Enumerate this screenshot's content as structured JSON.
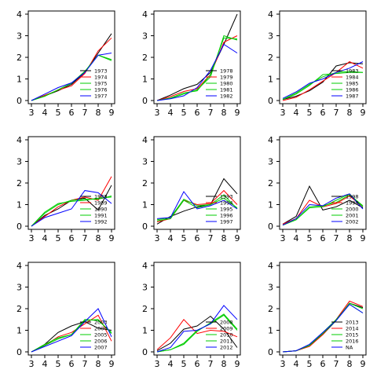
{
  "chart_data": {
    "type": "line",
    "layout": "3x3 small multiples",
    "x": [
      3,
      4,
      5,
      6,
      7,
      8,
      9
    ],
    "xlim": [
      3,
      9
    ],
    "ylim": [
      0,
      4
    ],
    "x_ticks": [
      3,
      4,
      5,
      6,
      7,
      8,
      9
    ],
    "y_ticks": [
      0,
      1,
      2,
      3,
      4
    ],
    "legend_placement": "right",
    "series_colors": [
      "#000000",
      "#ff0000",
      "#00cc00",
      "#00cc00",
      "#0000ff"
    ],
    "panels": [
      {
        "legend": [
          "1973",
          "1974",
          "1975",
          "1976",
          "1977"
        ],
        "series": [
          {
            "name": "1973",
            "color": "#000000",
            "values": [
              0.0,
              0.22,
              0.45,
              0.75,
              1.3,
              2.2,
              3.1
            ]
          },
          {
            "name": "1974",
            "color": "#ff0000",
            "values": [
              0.0,
              0.24,
              0.48,
              0.68,
              1.25,
              2.3,
              2.9
            ]
          },
          {
            "name": "1975",
            "color": "#00cc00",
            "values": [
              0.0,
              0.2,
              0.5,
              0.8,
              1.35,
              2.1,
              1.9
            ]
          },
          {
            "name": "1976",
            "color": "#00cc00",
            "values": [
              0.0,
              0.2,
              0.5,
              0.8,
              1.35,
              2.1,
              1.85
            ]
          },
          {
            "name": "1977",
            "color": "#0000ff",
            "values": [
              0.0,
              0.3,
              0.6,
              0.82,
              1.3,
              2.1,
              2.2
            ]
          }
        ]
      },
      {
        "legend": [
          "1978",
          "1979",
          "1980",
          "1981",
          "1982"
        ],
        "series": [
          {
            "name": "1978",
            "color": "#000000",
            "values": [
              0.0,
              0.25,
              0.55,
              0.75,
              1.3,
              2.6,
              4.0
            ]
          },
          {
            "name": "1979",
            "color": "#ff0000",
            "values": [
              0.0,
              0.18,
              0.42,
              0.55,
              1.2,
              2.7,
              3.0
            ]
          },
          {
            "name": "1980",
            "color": "#00cc00",
            "values": [
              0.0,
              0.1,
              0.3,
              0.5,
              1.1,
              3.0,
              2.8
            ]
          },
          {
            "name": "1981",
            "color": "#00cc00",
            "values": [
              0.0,
              0.12,
              0.35,
              0.45,
              1.2,
              2.9,
              2.85
            ]
          },
          {
            "name": "1982",
            "color": "#0000ff",
            "values": [
              0.0,
              0.08,
              0.22,
              0.6,
              1.4,
              2.6,
              2.2
            ]
          }
        ]
      },
      {
        "legend": [
          "1983",
          "1984",
          "1985",
          "1986",
          "1987"
        ],
        "series": [
          {
            "name": "1983",
            "color": "#000000",
            "values": [
              0.05,
              0.2,
              0.45,
              0.85,
              1.6,
              1.75,
              1.7
            ]
          },
          {
            "name": "1984",
            "color": "#ff0000",
            "values": [
              0.0,
              0.15,
              0.5,
              0.9,
              1.3,
              1.8,
              1.5
            ]
          },
          {
            "name": "1985",
            "color": "#00cc00",
            "values": [
              0.05,
              0.3,
              0.7,
              1.2,
              1.25,
              1.3,
              1.3
            ]
          },
          {
            "name": "1986",
            "color": "#00cc00",
            "values": [
              0.05,
              0.35,
              0.75,
              1.1,
              1.3,
              1.35,
              1.3
            ]
          },
          {
            "name": "1987",
            "color": "#0000ff",
            "values": [
              0.1,
              0.4,
              0.8,
              1.0,
              1.3,
              1.5,
              1.8
            ]
          }
        ]
      },
      {
        "legend": [
          "1988",
          "1989",
          "1990",
          "1991",
          "1992"
        ],
        "series": [
          {
            "name": "1988",
            "color": "#000000",
            "values": [
              0.0,
              0.5,
              0.8,
              1.2,
              1.3,
              0.75,
              1.9
            ]
          },
          {
            "name": "1989",
            "color": "#ff0000",
            "values": [
              0.0,
              0.45,
              0.9,
              1.2,
              1.35,
              1.2,
              2.3
            ]
          },
          {
            "name": "1990",
            "color": "#00cc00",
            "values": [
              0.0,
              0.6,
              1.0,
              1.2,
              1.25,
              1.25,
              1.4
            ]
          },
          {
            "name": "1991",
            "color": "#00cc00",
            "values": [
              0.0,
              0.65,
              1.05,
              1.15,
              1.2,
              1.3,
              1.35
            ]
          },
          {
            "name": "1992",
            "color": "#0000ff",
            "values": [
              0.0,
              0.4,
              0.6,
              0.8,
              1.65,
              1.55,
              1.05
            ]
          }
        ]
      },
      {
        "legend": [
          "1993",
          "1994",
          "1995",
          "1996",
          "1997"
        ],
        "series": [
          {
            "name": "1993",
            "color": "#000000",
            "values": [
              0.1,
              0.45,
              0.7,
              0.9,
              1.0,
              2.2,
              1.5
            ]
          },
          {
            "name": "1994",
            "color": "#ff0000",
            "values": [
              0.2,
              0.35,
              1.2,
              1.0,
              1.05,
              1.65,
              1.0
            ]
          },
          {
            "name": "1995",
            "color": "#00cc00",
            "values": [
              0.25,
              0.35,
              1.2,
              0.85,
              1.0,
              1.3,
              0.85
            ]
          },
          {
            "name": "1996",
            "color": "#00cc00",
            "values": [
              0.3,
              0.4,
              1.25,
              0.95,
              1.0,
              1.45,
              0.8
            ]
          },
          {
            "name": "1997",
            "color": "#0000ff",
            "values": [
              0.35,
              0.4,
              1.6,
              0.8,
              0.95,
              1.2,
              0.8
            ]
          }
        ]
      },
      {
        "legend": [
          "1998",
          "1999",
          "2000",
          "2001",
          "2002"
        ],
        "series": [
          {
            "name": "1998",
            "color": "#000000",
            "values": [
              0.1,
              0.45,
              1.85,
              0.75,
              0.9,
              1.2,
              0.85
            ]
          },
          {
            "name": "1999",
            "color": "#ff0000",
            "values": [
              0.1,
              0.35,
              1.2,
              0.9,
              1.05,
              1.4,
              0.9
            ]
          },
          {
            "name": "2000",
            "color": "#00cc00",
            "values": [
              0.05,
              0.3,
              0.85,
              0.9,
              1.2,
              1.5,
              0.9
            ]
          },
          {
            "name": "2001",
            "color": "#00cc00",
            "values": [
              0.05,
              0.3,
              0.9,
              0.95,
              1.1,
              1.45,
              0.95
            ]
          },
          {
            "name": "2002",
            "color": "#0000ff",
            "values": [
              0.05,
              0.35,
              1.0,
              0.95,
              1.3,
              1.5,
              0.8
            ]
          }
        ]
      },
      {
        "legend": [
          "2003",
          "2004",
          "2005",
          "2006",
          "2007"
        ],
        "series": [
          {
            "name": "2003",
            "color": "#000000",
            "values": [
              0.0,
              0.35,
              0.9,
              1.2,
              1.4,
              1.1,
              1.0
            ]
          },
          {
            "name": "2004",
            "color": "#ff0000",
            "values": [
              0.0,
              0.3,
              0.7,
              0.9,
              1.3,
              1.7,
              0.5
            ]
          },
          {
            "name": "2005",
            "color": "#00cc00",
            "values": [
              0.0,
              0.35,
              0.65,
              0.8,
              1.5,
              1.45,
              0.9
            ]
          },
          {
            "name": "2006",
            "color": "#00cc00",
            "values": [
              0.0,
              0.3,
              0.6,
              0.8,
              1.45,
              1.5,
              0.85
            ]
          },
          {
            "name": "2007",
            "color": "#0000ff",
            "values": [
              0.0,
              0.25,
              0.5,
              0.75,
              1.4,
              2.0,
              0.7
            ]
          }
        ]
      },
      {
        "legend": [
          "2008",
          "2009",
          "2010",
          "2011",
          "2012"
        ],
        "series": [
          {
            "name": "2008",
            "color": "#000000",
            "values": [
              0.05,
              0.4,
              1.05,
              1.2,
              1.65,
              1.05,
              0.2
            ]
          },
          {
            "name": "2009",
            "color": "#ff0000",
            "values": [
              0.1,
              0.65,
              1.5,
              0.85,
              1.0,
              0.95,
              0.7
            ]
          },
          {
            "name": "2010",
            "color": "#00cc00",
            "values": [
              0.0,
              0.1,
              0.4,
              1.0,
              1.3,
              1.7,
              1.0
            ]
          },
          {
            "name": "2011",
            "color": "#00cc00",
            "values": [
              0.0,
              0.1,
              0.35,
              0.95,
              1.35,
              1.75,
              1.05
            ]
          },
          {
            "name": "2012",
            "color": "#0000ff",
            "values": [
              0.0,
              0.2,
              0.95,
              1.0,
              1.3,
              2.15,
              1.5
            ]
          }
        ]
      },
      {
        "legend": [
          "2013",
          "2014",
          "2015",
          "2016",
          "NA"
        ],
        "series": [
          {
            "name": "2013",
            "color": "#000000",
            "values": [
              0.0,
              0.05,
              0.3,
              0.8,
              1.45,
              2.25,
              2.05
            ]
          },
          {
            "name": "2014",
            "color": "#ff0000",
            "values": [
              0.0,
              0.05,
              0.25,
              0.8,
              1.5,
              2.35,
              2.1
            ]
          },
          {
            "name": "2015",
            "color": "#00cc00",
            "values": [
              0.0,
              0.05,
              0.3,
              0.9,
              1.5,
              2.2,
              1.8
            ]
          },
          {
            "name": "2016",
            "color": "#00cc00",
            "values": [
              0.0,
              0.05,
              0.3,
              0.85,
              1.45,
              2.25,
              2.0
            ]
          },
          {
            "name": "NA",
            "color": "#0000ff",
            "values": [
              0.0,
              0.05,
              0.35,
              0.9,
              1.45,
              2.2,
              1.8
            ]
          }
        ]
      }
    ]
  }
}
